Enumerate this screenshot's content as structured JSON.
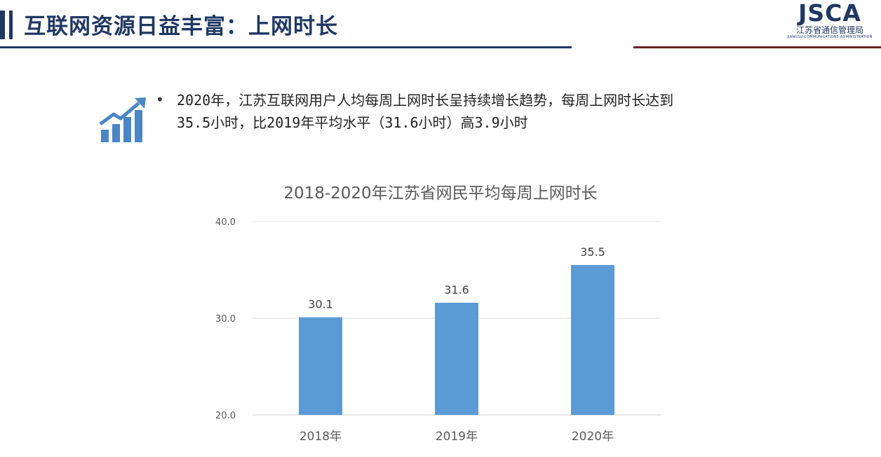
{
  "header": {
    "title": "互联网资源日益丰富：上网时长",
    "logo_text": "JSCA",
    "logo_subtitle": "江苏省通信管理局",
    "logo_english": "JIANGSU COMMUNICATIONS ADMINISTRATION"
  },
  "bullet": {
    "line1": "2020年，江苏互联网用户人均每周上网时长呈持续增长趋势，每周上网时长达到",
    "line2": "35.5小时，比2019年平均水平（31.6小时）高3.9小时",
    "icon": "trend-up-bar-icon"
  },
  "colors": {
    "navy": "#1f3864",
    "maroon": "#6b2125",
    "bar": "#5b9bd5",
    "icon": "#4a86c5"
  },
  "chart_data": {
    "type": "bar",
    "title": "2018-2020年江苏省网民平均每周上网时长",
    "categories": [
      "2018年",
      "2019年",
      "2020年"
    ],
    "values": [
      30.1,
      31.6,
      35.5
    ],
    "data_labels": [
      "30.1",
      "31.6",
      "35.5"
    ],
    "ylim": [
      20,
      40
    ],
    "yticks": [
      "20.0",
      "30.0",
      "40.0"
    ],
    "ytick_values": [
      20,
      30,
      40
    ],
    "grid": true,
    "legend": "none",
    "xlabel": "",
    "ylabel": ""
  }
}
